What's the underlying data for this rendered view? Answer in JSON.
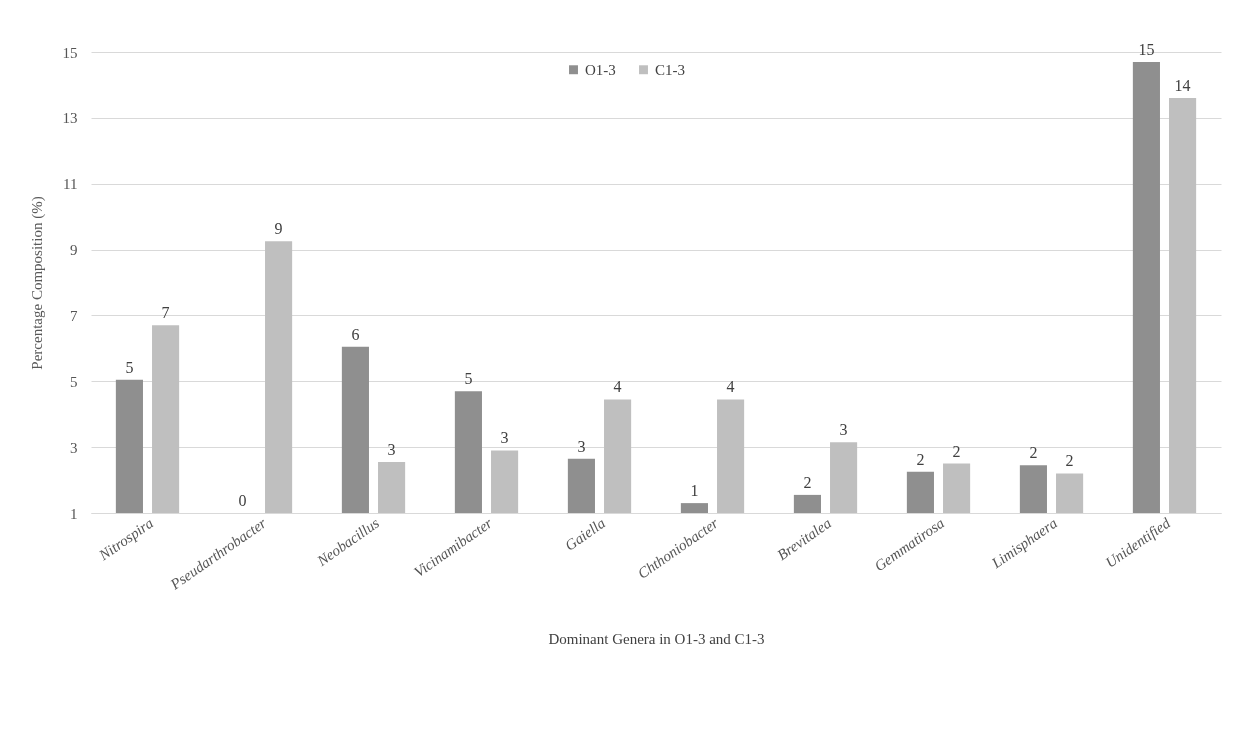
{
  "chart_data": {
    "type": "bar",
    "xlabel": "Dominant  Genera in O1-3 and C1-3",
    "ylabel": "Percentage  Composition  (%)",
    "categories": [
      "Nitrospira",
      "Pseudarthrobacter",
      "Neobacillus",
      "Vicinamibacter",
      "Gaiella",
      "Chthoniobacter",
      "Brevitalea",
      "Gemmatirosa",
      "Limisphaera",
      "Unidentified"
    ],
    "series": [
      {
        "name": "O1-3",
        "color": "#8f8f8f",
        "values": [
          5.05,
          null,
          6.05,
          4.7,
          2.65,
          1.3,
          1.55,
          2.25,
          2.45,
          14.7
        ],
        "value_labels": [
          "5",
          "0",
          "6",
          "5",
          "3",
          "1",
          "2",
          "2",
          "2",
          "15"
        ]
      },
      {
        "name": "C1-3",
        "color": "#bfbfbf",
        "values": [
          6.7,
          9.25,
          2.55,
          2.9,
          4.45,
          4.45,
          3.15,
          2.5,
          2.2,
          13.6
        ],
        "value_labels": [
          "7",
          "9",
          "3",
          "3",
          "4",
          "4",
          "3",
          "2",
          "2",
          "14"
        ]
      }
    ],
    "ylim": [
      1,
      15
    ],
    "yticks": [
      1,
      3,
      5,
      7,
      9,
      11,
      13,
      15
    ],
    "grid": "y",
    "legend": "top"
  }
}
